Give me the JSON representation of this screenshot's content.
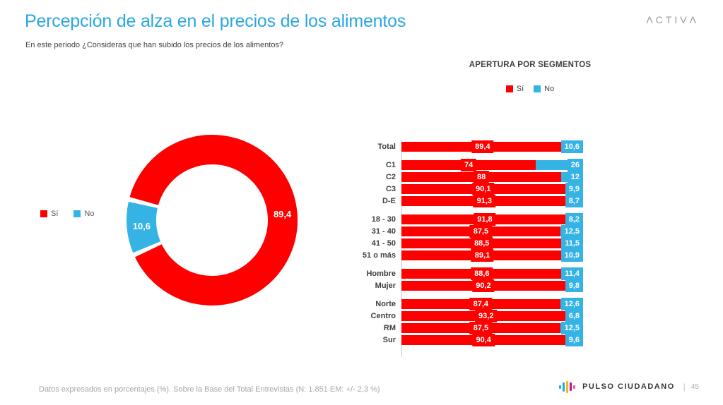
{
  "header": {
    "title": "Percepción de alza en el precios de los alimentos",
    "subtitle": "En este periodo ¿Consideras que han subido los precios de los alimentos?",
    "brand": "ΛCTIVΛ"
  },
  "colors": {
    "si": "#FE0000",
    "no": "#35B3E5",
    "title_accent": "#2BA7DF",
    "axis": "#C9C9C9"
  },
  "chart_data": [
    {
      "type": "pie",
      "subtype": "donut",
      "labels": [
        "Sí",
        "No"
      ],
      "values": [
        89.4,
        10.6
      ],
      "value_labels": [
        "89,4",
        "10,6"
      ],
      "colors": [
        "#FE0000",
        "#35B3E5"
      ],
      "legend_position": "left"
    },
    {
      "type": "bar",
      "subtype": "stacked-horizontal",
      "title": "APERTURA POR SEGMENTOS",
      "series": [
        "Sí",
        "No"
      ],
      "xlim": [
        0,
        100
      ],
      "legend_position": "top",
      "groups": [
        {
          "rows": [
            {
              "label": "Total",
              "values": [
                89.4,
                10.6
              ],
              "value_labels": [
                "89,4",
                "10,6"
              ]
            }
          ]
        },
        {
          "rows": [
            {
              "label": "C1",
              "values": [
                74,
                26
              ],
              "value_labels": [
                "74",
                "26"
              ]
            },
            {
              "label": "C2",
              "values": [
                88,
                12
              ],
              "value_labels": [
                "88",
                "12"
              ]
            },
            {
              "label": "C3",
              "values": [
                90.1,
                9.9
              ],
              "value_labels": [
                "90,1",
                "9,9"
              ]
            },
            {
              "label": "D-E",
              "values": [
                91.3,
                8.7
              ],
              "value_labels": [
                "91,3",
                "8,7"
              ]
            }
          ]
        },
        {
          "rows": [
            {
              "label": "18 - 30",
              "values": [
                91.8,
                8.2
              ],
              "value_labels": [
                "91,8",
                "8,2"
              ]
            },
            {
              "label": "31 - 40",
              "values": [
                87.5,
                12.5
              ],
              "value_labels": [
                "87,5",
                "12,5"
              ]
            },
            {
              "label": "41 - 50",
              "values": [
                88.5,
                11.5
              ],
              "value_labels": [
                "88,5",
                "11,5"
              ]
            },
            {
              "label": "51 o más",
              "values": [
                89.1,
                10.9
              ],
              "value_labels": [
                "89,1",
                "10,9"
              ]
            }
          ]
        },
        {
          "rows": [
            {
              "label": "Hombre",
              "values": [
                88.6,
                11.4
              ],
              "value_labels": [
                "88,6",
                "11,4"
              ]
            },
            {
              "label": "Mujer",
              "values": [
                90.2,
                9.8
              ],
              "value_labels": [
                "90,2",
                "9,8"
              ]
            }
          ]
        },
        {
          "rows": [
            {
              "label": "Norte",
              "values": [
                87.4,
                12.6
              ],
              "value_labels": [
                "87,4",
                "12,6"
              ]
            },
            {
              "label": "Centro",
              "values": [
                93.2,
                6.8
              ],
              "value_labels": [
                "93,2",
                "6,8"
              ]
            },
            {
              "label": "RM",
              "values": [
                87.5,
                12.5
              ],
              "value_labels": [
                "87,5",
                "12,5"
              ]
            },
            {
              "label": "Sur",
              "values": [
                90.4,
                9.6
              ],
              "value_labels": [
                "90,4",
                "9,6"
              ]
            }
          ]
        }
      ]
    }
  ],
  "footer": {
    "note": "Datos expresados en porcentajes (%). Sobre la Base del Total Entrevistas (N: 1.851  EM: +/- 2,3 %)",
    "brand": "PULSO CIUDADANO",
    "separator": "|",
    "page": "45",
    "logo_bar_colors": [
      "#2AA6DB",
      "#12AEE8",
      "#FFB612",
      "#C2108A",
      "#EF5BA1"
    ]
  }
}
